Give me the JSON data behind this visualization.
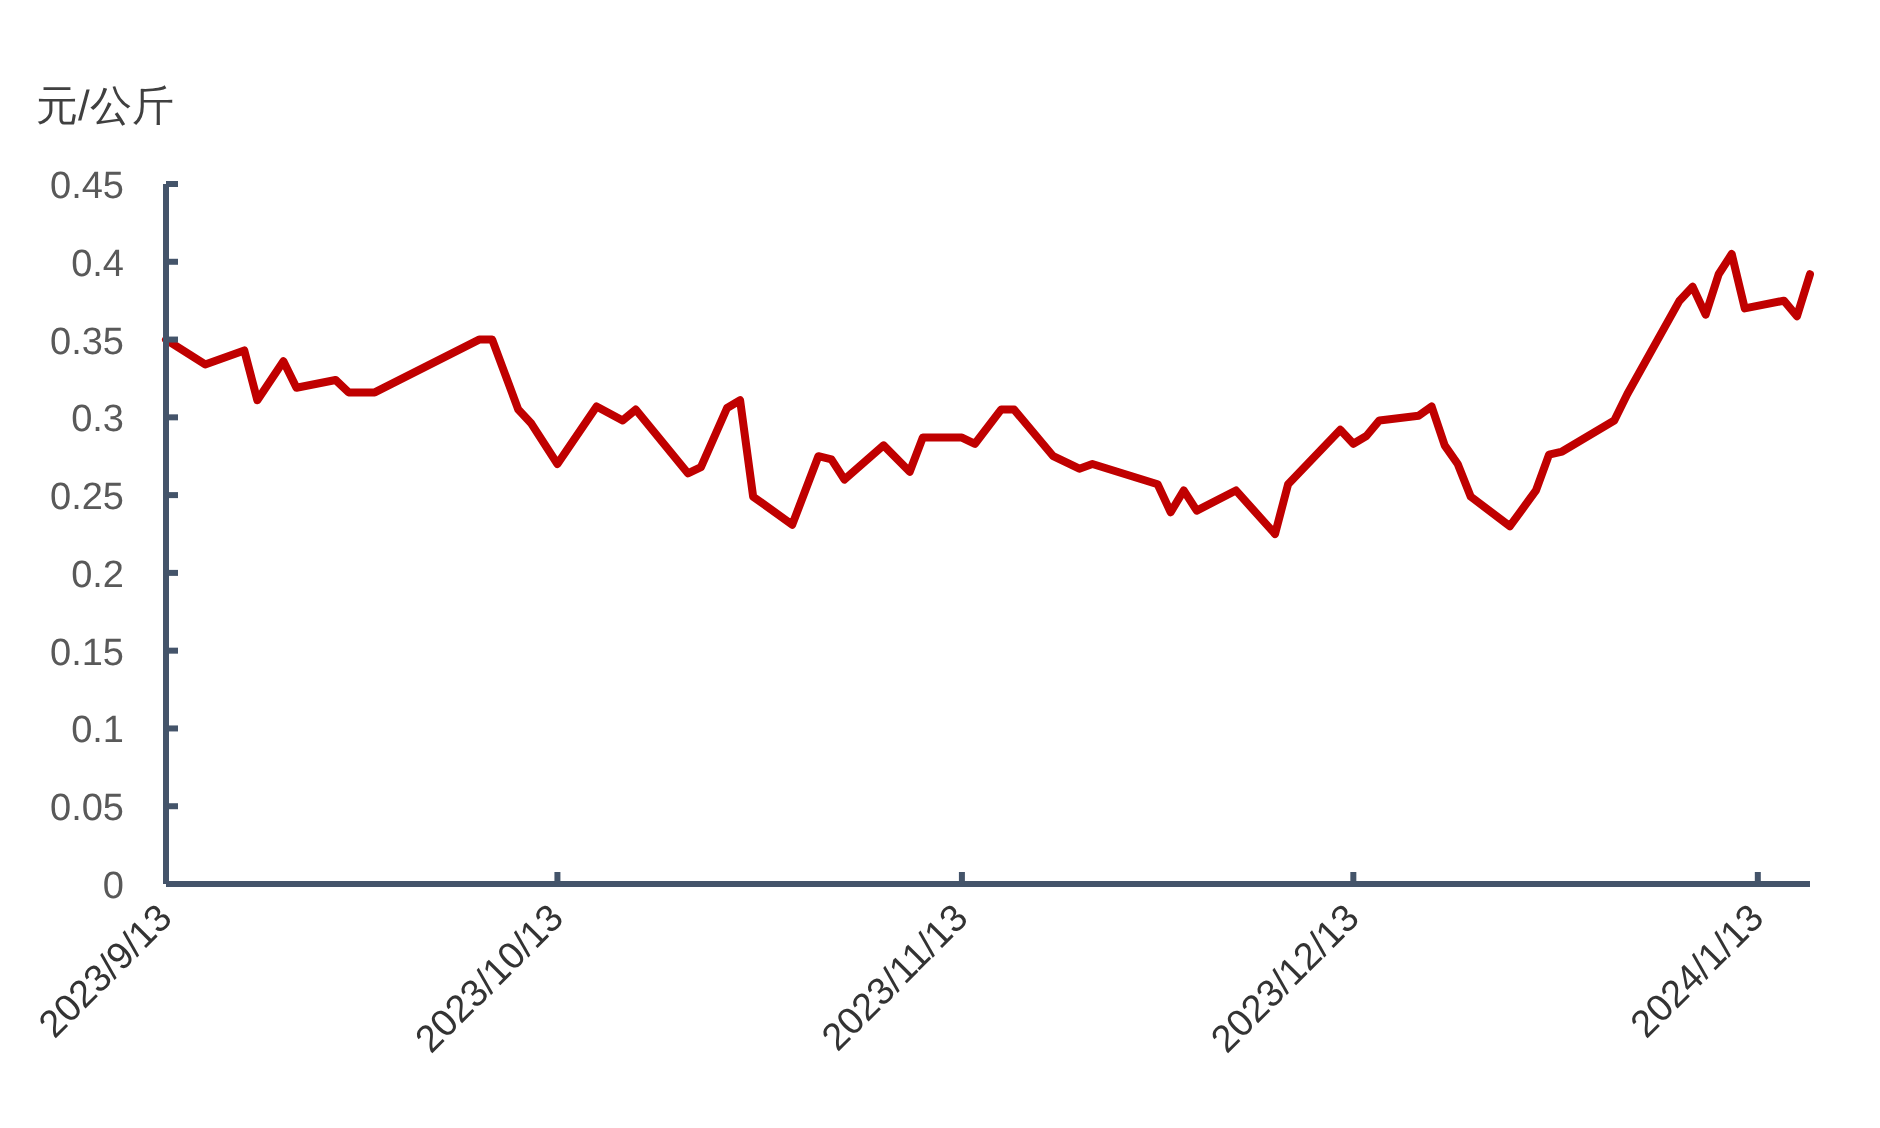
{
  "chart_data": {
    "type": "line",
    "ylabel": "元/公斤",
    "x": [
      "2023-09-13",
      "2023-09-16",
      "2023-09-19",
      "2023-09-20",
      "2023-09-22",
      "2023-09-23",
      "2023-09-26",
      "2023-09-27",
      "2023-09-29",
      "2023-10-07",
      "2023-10-08",
      "2023-10-10",
      "2023-10-11",
      "2023-10-13",
      "2023-10-16",
      "2023-10-18",
      "2023-10-19",
      "2023-10-23",
      "2023-10-24",
      "2023-10-26",
      "2023-10-27",
      "2023-10-28",
      "2023-10-31",
      "2023-11-02",
      "2023-11-03",
      "2023-11-04",
      "2023-11-07",
      "2023-11-09",
      "2023-11-10",
      "2023-11-13",
      "2023-11-14",
      "2023-11-16",
      "2023-11-17",
      "2023-11-20",
      "2023-11-22",
      "2023-11-23",
      "2023-11-28",
      "2023-11-29",
      "2023-11-30",
      "2023-12-01",
      "2023-12-04",
      "2023-12-07",
      "2023-12-08",
      "2023-12-12",
      "2023-12-13",
      "2023-12-14",
      "2023-12-15",
      "2023-12-18",
      "2023-12-19",
      "2023-12-20",
      "2023-12-21",
      "2023-12-22",
      "2023-12-25",
      "2023-12-27",
      "2023-12-28",
      "2023-12-29",
      "2024-01-02",
      "2024-01-03",
      "2024-01-07",
      "2024-01-08",
      "2024-01-09",
      "2024-01-10",
      "2024-01-11",
      "2024-01-12",
      "2024-01-15",
      "2024-01-16",
      "2024-01-17"
    ],
    "series": [
      {
        "color": "#c00000",
        "values": [
          0.35,
          0.334,
          0.343,
          0.311,
          0.336,
          0.319,
          0.324,
          0.316,
          0.316,
          0.35,
          0.35,
          0.305,
          0.296,
          0.27,
          0.307,
          0.298,
          0.305,
          0.264,
          0.268,
          0.306,
          0.311,
          0.249,
          0.231,
          0.275,
          0.273,
          0.26,
          0.282,
          0.265,
          0.287,
          0.287,
          0.283,
          0.305,
          0.305,
          0.275,
          0.267,
          0.27,
          0.257,
          0.239,
          0.253,
          0.24,
          0.253,
          0.225,
          0.257,
          0.292,
          0.283,
          0.288,
          0.298,
          0.301,
          0.307,
          0.282,
          0.27,
          0.249,
          0.23,
          0.253,
          0.276,
          0.278,
          0.298,
          0.315,
          0.375,
          0.384,
          0.366,
          0.392,
          0.405,
          0.37,
          0.375,
          0.365,
          0.392
        ]
      }
    ],
    "xlim": [
      "2023-09-13",
      "2024-01-17"
    ],
    "xticks": [
      {
        "value": "2023-09-13",
        "label": "2023/9/13"
      },
      {
        "value": "2023-10-13",
        "label": "2023/10/13"
      },
      {
        "value": "2023-11-13",
        "label": "2023/11/13"
      },
      {
        "value": "2023-12-13",
        "label": "2023/12/13"
      },
      {
        "value": "2024-01-13",
        "label": "2024/1/13"
      }
    ],
    "ylim": [
      0,
      0.45
    ],
    "yticks": [
      0,
      0.05,
      0.1,
      0.15,
      0.2,
      0.25,
      0.3,
      0.35,
      0.4,
      0.45
    ],
    "grid": false,
    "marker": "none",
    "line_style": "solid"
  }
}
